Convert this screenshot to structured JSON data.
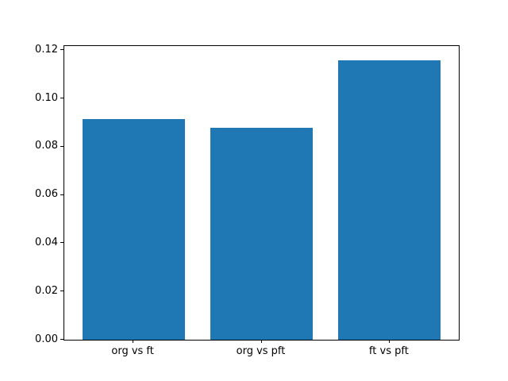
{
  "chart_data": {
    "type": "bar",
    "categories": [
      "org vs ft",
      "org vs pft",
      "ft vs pft"
    ],
    "values": [
      0.0915,
      0.088,
      0.116
    ],
    "title": "",
    "xlabel": "",
    "ylabel": "",
    "ylim": [
      0,
      0.1218
    ],
    "yticks": [
      0,
      0.02,
      0.04,
      0.06,
      0.08,
      0.1,
      0.12
    ],
    "ytick_labels": [
      "0.00",
      "0.02",
      "0.04",
      "0.06",
      "0.08",
      "0.10",
      "0.12"
    ],
    "bar_color": "#1f77b4",
    "axis_color": "#000000",
    "bar_width_fraction": 0.8,
    "grid": false,
    "legend_position": "none"
  }
}
